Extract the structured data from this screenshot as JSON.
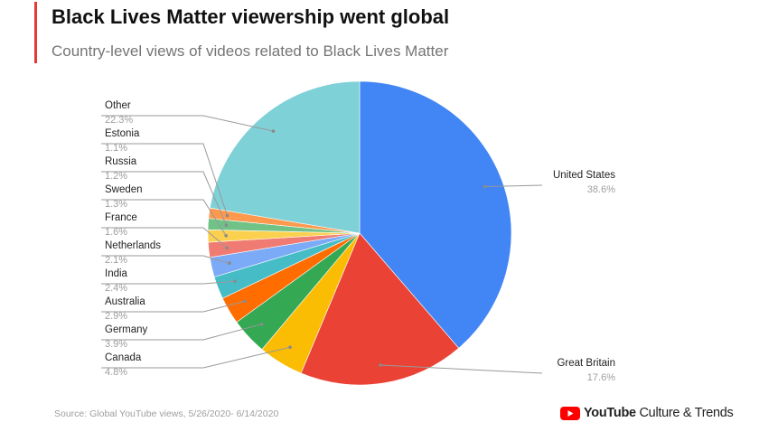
{
  "header": {
    "title": "Black Lives Matter viewership went global",
    "subtitle": "Country-level views of videos related to Black Lives Matter",
    "accent_color": "#e53935"
  },
  "footer": {
    "source": "Source: Global YouTube views, 5/26/2020- 6/14/2020",
    "brand_name": "YouTube",
    "brand_suffix": " Culture & Trends",
    "brand_icon": "youtube-play-icon",
    "brand_color": "#ff0000"
  },
  "chart_data": {
    "type": "pie",
    "title": "Black Lives Matter viewership went global",
    "subtitle": "Country-level views of videos related to Black Lives Matter",
    "start_angle": "12 o'clock, clockwise",
    "slices": [
      {
        "label": "United States",
        "value": 38.6,
        "display": "38.6%",
        "color": "#4285f4"
      },
      {
        "label": "Great Britain",
        "value": 17.6,
        "display": "17.6%",
        "color": "#ea4335"
      },
      {
        "label": "Canada",
        "value": 4.8,
        "display": "4.8%",
        "color": "#fbbc04"
      },
      {
        "label": "Germany",
        "value": 3.9,
        "display": "3.9%",
        "color": "#34a853"
      },
      {
        "label": "Australia",
        "value": 2.9,
        "display": "2.9%",
        "color": "#ff6d01"
      },
      {
        "label": "India",
        "value": 2.4,
        "display": "2.4%",
        "color": "#46bdc6"
      },
      {
        "label": "Netherlands",
        "value": 2.1,
        "display": "2.1%",
        "color": "#7baaf7"
      },
      {
        "label": "France",
        "value": 1.6,
        "display": "1.6%",
        "color": "#f07b72"
      },
      {
        "label": "Sweden",
        "value": 1.3,
        "display": "1.3%",
        "color": "#fcd04f"
      },
      {
        "label": "Russia",
        "value": 1.2,
        "display": "1.2%",
        "color": "#71c287"
      },
      {
        "label": "Estonia",
        "value": 1.1,
        "display": "1.1%",
        "color": "#ff994d"
      },
      {
        "label": "Other",
        "value": 22.3,
        "display": "22.3%",
        "color": "#7ed1d7"
      }
    ],
    "label_text_color": "#222222",
    "value_text_color": "#9e9e9e",
    "leader_line_color": "#999999"
  }
}
